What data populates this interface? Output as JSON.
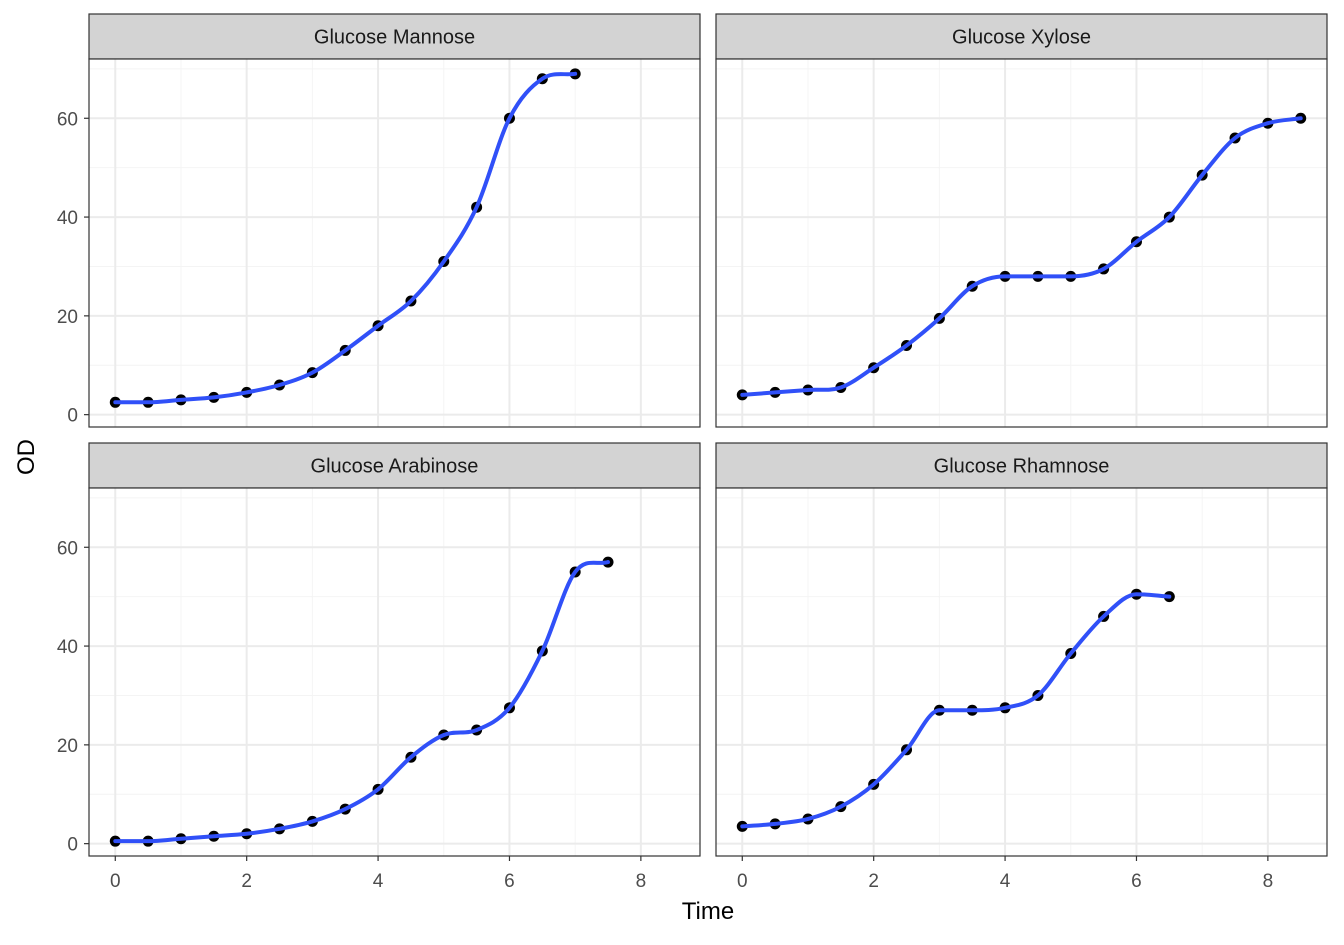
{
  "figure": {
    "xlabel": "Time",
    "ylabel": "OD"
  },
  "style": {
    "strip_fill": "#d3d3d3",
    "panel_border": "#333333",
    "grid_major": "#ebebeb",
    "grid_minor": "#f4f4f4",
    "point_color": "#000000",
    "line_color": "#3050f8",
    "axis_text": "#4d4d4d",
    "background": "#ffffff"
  },
  "chart_data": [
    {
      "type": "line",
      "title": "Glucose Mannose",
      "xlim": [
        -0.4,
        8.9
      ],
      "ylim": [
        -2.5,
        72
      ],
      "xticks": [
        0,
        2,
        4,
        6,
        8
      ],
      "yticks": [
        0,
        20,
        40,
        60
      ],
      "x": [
        0,
        0.5,
        1,
        1.5,
        2,
        2.5,
        3,
        3.5,
        4,
        4.5,
        5,
        5.5,
        6,
        6.5,
        7
      ],
      "y": [
        2.5,
        2.5,
        3,
        3.5,
        4.5,
        6,
        8.5,
        13,
        18,
        23,
        31,
        42,
        60,
        68,
        69
      ]
    },
    {
      "type": "line",
      "title": "Glucose Xylose",
      "xlim": [
        -0.4,
        8.9
      ],
      "ylim": [
        -2.5,
        72
      ],
      "xticks": [
        0,
        2,
        4,
        6,
        8
      ],
      "yticks": [
        0,
        20,
        40,
        60
      ],
      "x": [
        0,
        0.5,
        1,
        1.5,
        2,
        2.5,
        3,
        3.5,
        4,
        4.5,
        5,
        5.5,
        6,
        6.5,
        7,
        7.5,
        8,
        8.5
      ],
      "y": [
        4,
        4.5,
        5,
        5.5,
        9.5,
        14,
        19.5,
        26,
        28,
        28,
        28,
        29.5,
        35,
        40,
        48.5,
        56,
        59,
        60
      ]
    },
    {
      "type": "line",
      "title": "Glucose Arabinose",
      "xlim": [
        -0.4,
        8.9
      ],
      "ylim": [
        -2.5,
        72
      ],
      "xticks": [
        0,
        2,
        4,
        6,
        8
      ],
      "yticks": [
        0,
        20,
        40,
        60
      ],
      "x": [
        0,
        0.5,
        1,
        1.5,
        2,
        2.5,
        3,
        3.5,
        4,
        4.5,
        5,
        5.5,
        6,
        6.5,
        7,
        7.5
      ],
      "y": [
        0.5,
        0.5,
        1,
        1.5,
        2,
        3,
        4.5,
        7,
        11,
        17.5,
        22,
        23,
        27.5,
        39,
        55,
        57
      ]
    },
    {
      "type": "line",
      "title": "Glucose Rhamnose",
      "xlim": [
        -0.4,
        8.9
      ],
      "ylim": [
        -2.5,
        72
      ],
      "xticks": [
        0,
        2,
        4,
        6,
        8
      ],
      "yticks": [
        0,
        20,
        40,
        60
      ],
      "x": [
        0,
        0.5,
        1,
        1.5,
        2,
        2.5,
        3,
        3.5,
        4,
        4.5,
        5,
        5.5,
        6,
        6.5
      ],
      "y": [
        3.5,
        4,
        5,
        7.5,
        12,
        19,
        27,
        27,
        27.5,
        30,
        38.5,
        46,
        50.5,
        50
      ]
    }
  ]
}
